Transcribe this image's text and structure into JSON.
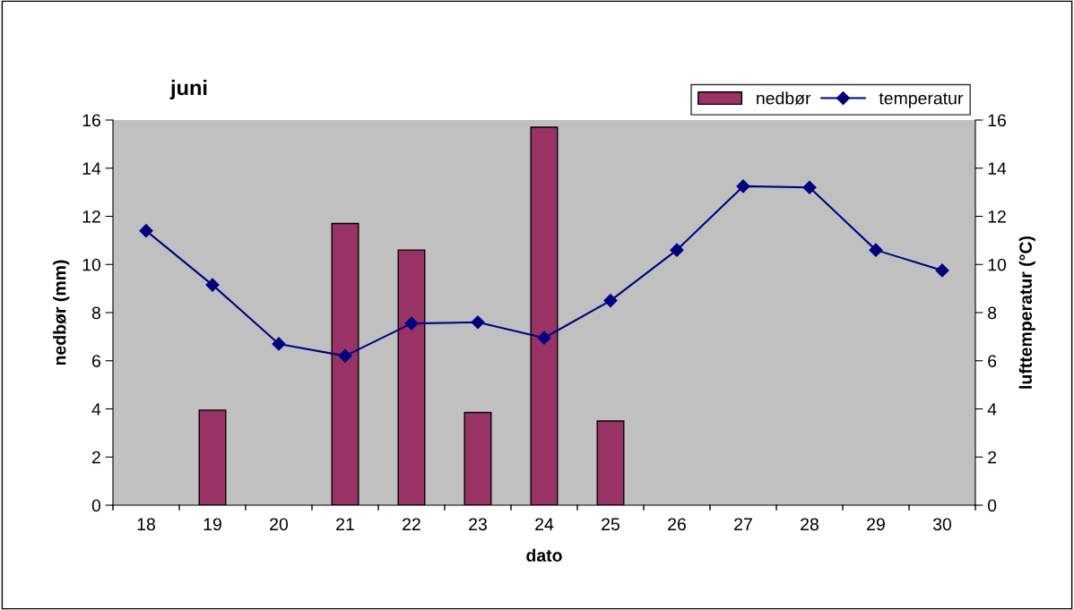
{
  "chart_data": {
    "type": "bar",
    "title": "juni",
    "xlabel": "dato",
    "ylabel": "nedbør (mm)",
    "y2label": "lufttemperatur (°C)",
    "categories": [
      "18",
      "19",
      "20",
      "21",
      "22",
      "23",
      "24",
      "25",
      "26",
      "27",
      "28",
      "29",
      "30"
    ],
    "series": [
      {
        "name": "nedbør",
        "color": "#993366",
        "values": [
          0,
          3.95,
          0,
          11.7,
          10.6,
          3.85,
          15.7,
          3.5,
          0,
          0,
          0,
          0,
          0
        ]
      },
      {
        "name": "temperatur",
        "type": "line",
        "axis": "y2",
        "color": "#000080",
        "marker": "diamond",
        "values": [
          11.4,
          9.15,
          6.7,
          6.2,
          7.55,
          7.6,
          6.95,
          8.5,
          10.6,
          13.25,
          13.2,
          10.6,
          9.75
        ]
      }
    ],
    "ylim": [
      0,
      16
    ],
    "yticks": [
      0,
      2,
      4,
      6,
      8,
      10,
      12,
      14,
      16
    ],
    "y2lim": [
      0,
      16
    ],
    "y2ticks": [
      0,
      2,
      4,
      6,
      8,
      10,
      12,
      14,
      16
    ],
    "grid": false,
    "legend": "top right"
  }
}
